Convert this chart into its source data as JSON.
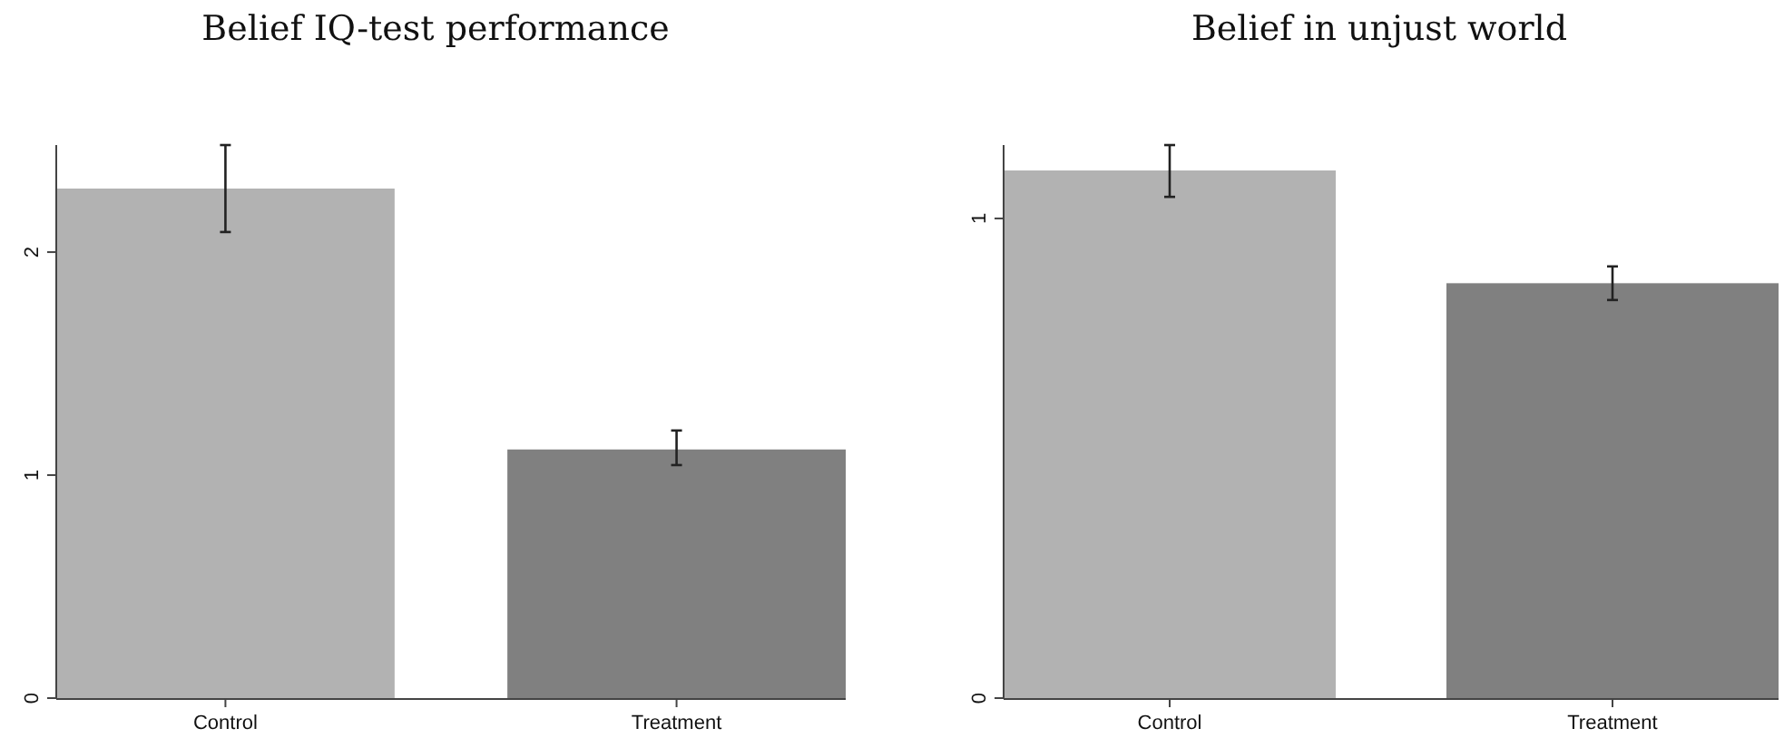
{
  "chart_data": [
    {
      "type": "bar",
      "title": "Belief IQ-test performance",
      "categories": [
        "Control",
        "Treatment"
      ],
      "values": [
        2.285,
        1.115
      ],
      "colors": [
        "#b2b2b2",
        "#808080"
      ],
      "errors": [
        [
          2.09,
          2.48
        ],
        [
          1.045,
          1.2
        ]
      ],
      "ylim": [
        0,
        2.48
      ],
      "yticks": [
        0,
        1,
        2
      ]
    },
    {
      "type": "bar",
      "title": "Belief in unjust world",
      "categories": [
        "Control",
        "Treatment"
      ],
      "values": [
        1.1,
        0.865
      ],
      "colors": [
        "#b2b2b2",
        "#808080"
      ],
      "errors": [
        [
          1.045,
          1.153
        ],
        [
          0.83,
          0.9
        ]
      ],
      "ylim": [
        0,
        1.153
      ],
      "yticks": [
        0,
        1
      ]
    }
  ]
}
